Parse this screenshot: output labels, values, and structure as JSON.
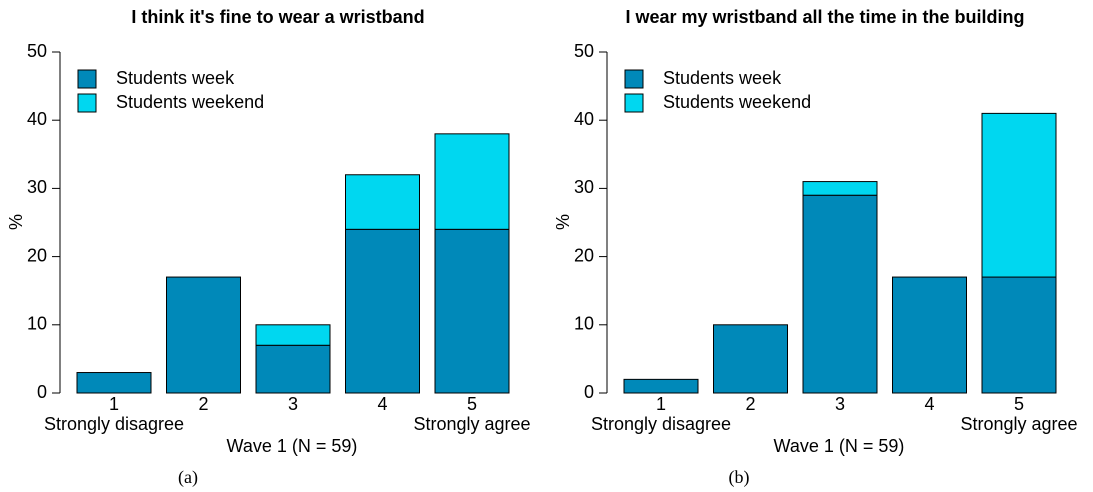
{
  "chart_data": [
    {
      "type": "bar",
      "stacked": true,
      "title": "I think it's fine to wear a wristband",
      "categories": [
        "1",
        "2",
        "3",
        "4",
        "5"
      ],
      "anchor_labels": [
        "Strongly disagree",
        null,
        null,
        null,
        "Strongly agree"
      ],
      "series": [
        {
          "name": "Students week",
          "color": "#0089b9",
          "values": [
            3,
            17,
            7,
            24,
            24
          ]
        },
        {
          "name": "Students weekend",
          "color": "#00d7f0",
          "values": [
            0,
            0,
            3,
            8,
            14
          ]
        }
      ],
      "xlabel": "Wave 1 (N = 59)",
      "ylabel": "%",
      "caption": "(a)",
      "ylim": [
        0,
        50
      ],
      "yticks": [
        0,
        10,
        20,
        30,
        40,
        50
      ],
      "legend": "top-left"
    },
    {
      "type": "bar",
      "stacked": true,
      "title": "I wear my wristband all the time in the building",
      "categories": [
        "1",
        "2",
        "3",
        "4",
        "5"
      ],
      "anchor_labels": [
        "Strongly disagree",
        null,
        null,
        null,
        "Strongly agree"
      ],
      "series": [
        {
          "name": "Students week",
          "color": "#0089b9",
          "values": [
            2,
            10,
            29,
            17,
            17
          ]
        },
        {
          "name": "Students weekend",
          "color": "#00d7f0",
          "values": [
            0,
            0,
            2,
            0,
            24
          ]
        }
      ],
      "xlabel": "Wave 1 (N = 59)",
      "ylabel": "%",
      "caption": "(b)",
      "ylim": [
        0,
        50
      ],
      "yticks": [
        0,
        10,
        20,
        30,
        40,
        50
      ],
      "legend": "top-left"
    }
  ]
}
